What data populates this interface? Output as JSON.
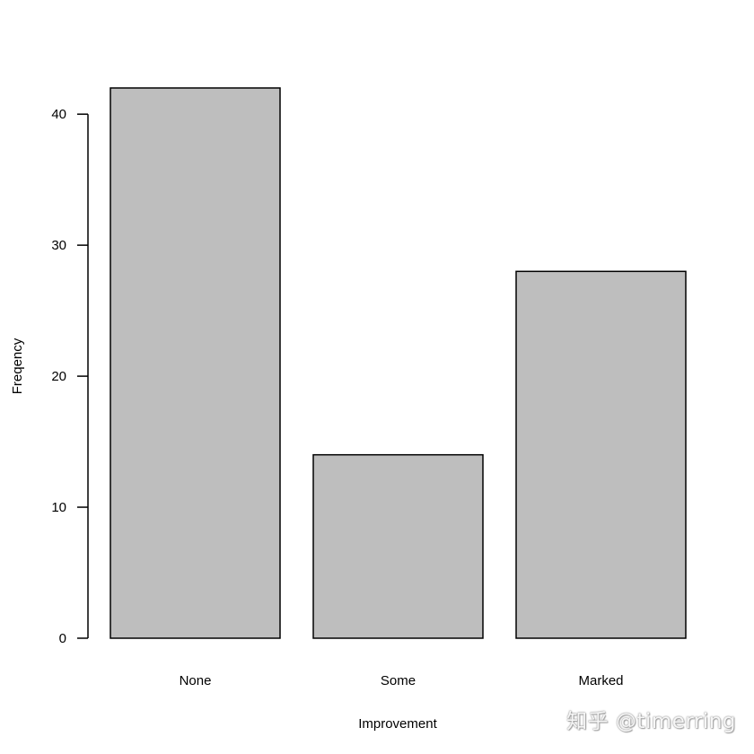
{
  "chart_data": {
    "type": "bar",
    "title": "",
    "xlabel": "Improvement",
    "ylabel": "Freqency",
    "categories": [
      "None",
      "Some",
      "Marked"
    ],
    "values": [
      42,
      14,
      28
    ],
    "ylim": [
      0,
      42
    ],
    "yticks": [
      0,
      10,
      20,
      30,
      40
    ],
    "bar_fill": "#bebebe",
    "bar_stroke": "#000000",
    "grid": false
  },
  "watermark": "知乎 @timerring"
}
